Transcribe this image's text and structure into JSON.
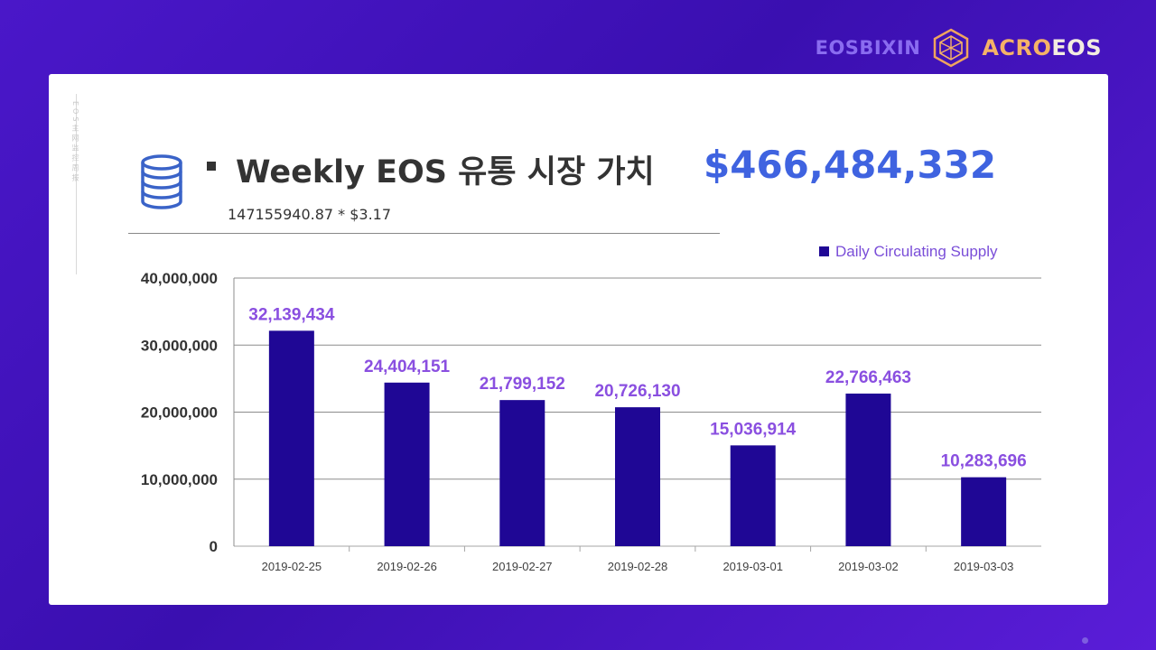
{
  "brand": {
    "left": "EOSBIXIN",
    "right_a": "ACRO",
    "right_b": "EOS"
  },
  "side_text": "EOS主网监控周报",
  "header": {
    "title": "Weekly EOS 유통 시장 가치",
    "value": "$466,484,332",
    "formula": "147155940.87 * $3.17"
  },
  "colors": {
    "bar": "#1f0795",
    "data_label": "#8a4fe0",
    "accent": "#3f63e0"
  },
  "chart_data": {
    "type": "bar",
    "categories": [
      "2019-02-25",
      "2019-02-26",
      "2019-02-27",
      "2019-02-28",
      "2019-03-01",
      "2019-03-02",
      "2019-03-03"
    ],
    "series": [
      {
        "name": "Daily Circulating Supply",
        "values": [
          32139434,
          24404151,
          21799152,
          20726130,
          15036914,
          22766463,
          10283696
        ]
      }
    ],
    "data_labels": [
      "32,139,434",
      "24,404,151",
      "21,799,152",
      "20,726,130",
      "15,036,914",
      "22,766,463",
      "10,283,696"
    ],
    "ylim": [
      0,
      40000000
    ],
    "yticks": [
      0,
      10000000,
      20000000,
      30000000,
      40000000
    ],
    "ytick_labels": [
      "0",
      "10,000,000",
      "20,000,000",
      "30,000,000",
      "40,000,000"
    ],
    "grid": true,
    "legend_position": "top-right"
  }
}
